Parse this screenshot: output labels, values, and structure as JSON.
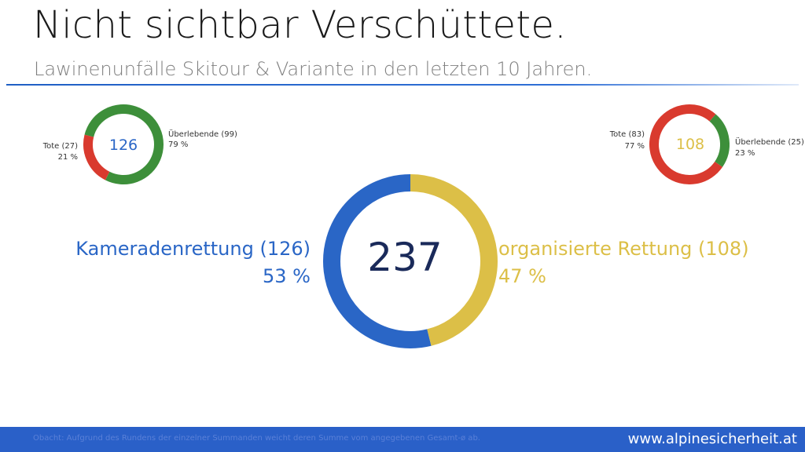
{
  "header": {
    "title": "Nicht sichtbar Verschüttete.",
    "subtitle": "Lawinenunfälle Skitour & Variante in den letzten 10 Jahren."
  },
  "colors": {
    "blue": "#2a66c6",
    "yellow": "#dcbf47",
    "green": "#3d8f3a",
    "red": "#d93a2e",
    "navy": "#1a2a5a",
    "footer": "#2a60c8"
  },
  "chart_data": [
    {
      "type": "pie",
      "variant": "donut",
      "center_label": "237",
      "slices": [
        {
          "label": "Kameradenrettung (126)",
          "value": 126,
          "percent_label": "53 %",
          "color": "#2a66c6"
        },
        {
          "label": "organisierte Rettung (108)",
          "value": 108,
          "percent_label": "47 %",
          "color": "#dcbf47"
        }
      ]
    },
    {
      "type": "pie",
      "variant": "donut",
      "center_label": "126",
      "slices": [
        {
          "label": "Überlebende (99)",
          "value": 99,
          "percent_label": "79 %",
          "color": "#3d8f3a"
        },
        {
          "label": "Tote (27)",
          "value": 27,
          "percent_label": "21 %",
          "color": "#d93a2e"
        }
      ]
    },
    {
      "type": "pie",
      "variant": "donut",
      "center_label": "108",
      "slices": [
        {
          "label": "Tote (83)",
          "value": 83,
          "percent_label": "77 %",
          "color": "#d93a2e"
        },
        {
          "label": "Überlebende (25)",
          "value": 25,
          "percent_label": "23 %",
          "color": "#3d8f3a"
        }
      ]
    }
  ],
  "footer": {
    "note": "Obacht: Aufgrund des Rundens der einzelner Summanden weicht deren Summe vom angegebenen Gesamt-ø ab.",
    "website": "www.alpinesicherheit.at"
  }
}
